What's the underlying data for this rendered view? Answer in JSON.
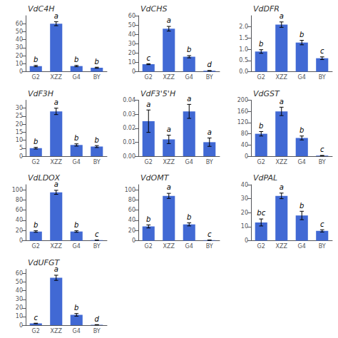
{
  "chart_data": [
    {
      "type": "bar",
      "title": "VdC4H",
      "categories": [
        "G2",
        "XZZ",
        "G4",
        "BY"
      ],
      "values": [
        7,
        60,
        7,
        5
      ],
      "errors": [
        0.8,
        2.5,
        0.8,
        0.6
      ],
      "annotations": [
        "b",
        "a",
        "b",
        "b"
      ],
      "color": "#4169d4",
      "ylim": [
        0,
        70
      ],
      "yticks": [
        0,
        10,
        20,
        30,
        40,
        50,
        60
      ],
      "grid": false
    },
    {
      "type": "bar",
      "title": "VdCHS",
      "categories": [
        "G2",
        "XZZ",
        "G4",
        "BY"
      ],
      "values": [
        8,
        46,
        16,
        1
      ],
      "errors": [
        0.5,
        2.5,
        1.2,
        0.2
      ],
      "annotations": [
        "c",
        "a",
        "b",
        "d"
      ],
      "color": "#4169d4",
      "ylim": [
        0,
        60
      ],
      "yticks": [
        0,
        10,
        20,
        30,
        40,
        50,
        60
      ],
      "grid": false
    },
    {
      "type": "bar",
      "title": "VdDFR",
      "categories": [
        "G2",
        "XZZ",
        "G4",
        "BY"
      ],
      "values": [
        0.9,
        2.1,
        1.3,
        0.6
      ],
      "errors": [
        0.08,
        0.12,
        0.1,
        0.06
      ],
      "annotations": [
        "b",
        "a",
        "b",
        "c"
      ],
      "color": "#4169d4",
      "ylim": [
        0,
        2.5
      ],
      "yticks": [
        {
          "value": 0,
          "label": "0.0"
        },
        0.5,
        {
          "value": 1.0,
          "label": "1.0"
        },
        1.5,
        {
          "value": 2.0,
          "label": "2.0"
        }
      ],
      "grid": false
    },
    {
      "type": "bar",
      "title": "VdF3H",
      "categories": [
        "G2",
        "XZZ",
        "G4",
        "BY"
      ],
      "values": [
        5,
        28,
        7,
        6
      ],
      "errors": [
        0.5,
        2.0,
        0.7,
        0.6
      ],
      "annotations": [
        "b",
        "a",
        "b",
        "b"
      ],
      "color": "#4169d4",
      "ylim": [
        0,
        35
      ],
      "yticks": [
        0,
        5,
        10,
        15,
        20,
        25,
        30
      ],
      "grid": false
    },
    {
      "type": "bar",
      "title": "VdF3'5'H",
      "categories": [
        "G2",
        "XZZ",
        "G4",
        "BY"
      ],
      "values": [
        0.025,
        0.012,
        0.032,
        0.01
      ],
      "errors": [
        0.008,
        0.003,
        0.005,
        0.003
      ],
      "annotations": [
        "a",
        "a",
        "a",
        "a"
      ],
      "color": "#4169d4",
      "ylim": [
        0,
        0.04
      ],
      "yticks": [
        {
          "value": 0,
          "label": "0.00"
        },
        0.01,
        0.02,
        0.03,
        0.04
      ],
      "grid": false
    },
    {
      "type": "bar",
      "title": "VdGST",
      "categories": [
        "G2",
        "XZZ",
        "G4",
        "BY"
      ],
      "values": [
        80,
        160,
        65,
        2
      ],
      "errors": [
        8,
        15,
        7,
        0.5
      ],
      "annotations": [
        "b",
        "a",
        "b",
        "c"
      ],
      "color": "#4169d4",
      "ylim": [
        0,
        200
      ],
      "yticks": [
        0,
        40,
        80,
        120,
        160,
        200
      ],
      "grid": false
    },
    {
      "type": "bar",
      "title": "VdLDOX",
      "categories": [
        "G2",
        "XZZ",
        "G4",
        "BY"
      ],
      "values": [
        18,
        95,
        18,
        1
      ],
      "errors": [
        1.5,
        4,
        1.5,
        0.2
      ],
      "annotations": [
        "b",
        "a",
        "b",
        "c"
      ],
      "color": "#4169d4",
      "ylim": [
        0,
        110
      ],
      "yticks": [
        0,
        20,
        40,
        60,
        80,
        100
      ],
      "grid": false
    },
    {
      "type": "bar",
      "title": "VdOMT",
      "categories": [
        "G2",
        "XZZ",
        "G4",
        "BY"
      ],
      "values": [
        28,
        88,
        32,
        1
      ],
      "errors": [
        3,
        5,
        3,
        0.2
      ],
      "annotations": [
        "b",
        "a",
        "b",
        "c"
      ],
      "color": "#4169d4",
      "ylim": [
        0,
        110
      ],
      "yticks": [
        0,
        20,
        40,
        60,
        80,
        100
      ],
      "grid": false
    },
    {
      "type": "bar",
      "title": "VdPAL",
      "categories": [
        "G2",
        "XZZ",
        "G4",
        "BY"
      ],
      "values": [
        13,
        32,
        18,
        7
      ],
      "errors": [
        2.5,
        2,
        3,
        0.8
      ],
      "annotations": [
        "bc",
        "a",
        "b",
        "c"
      ],
      "color": "#4169d4",
      "ylim": [
        0,
        40
      ],
      "yticks": [
        0,
        10,
        20,
        30,
        40
      ],
      "grid": false
    },
    {
      "type": "bar",
      "title": "VdUFGT",
      "categories": [
        "G2",
        "XZZ",
        "G4",
        "BY"
      ],
      "values": [
        2,
        55,
        12,
        0.5
      ],
      "errors": [
        0.3,
        3,
        1.5,
        0.1
      ],
      "annotations": [
        "c",
        "a",
        "b",
        "d"
      ],
      "color": "#4169d4",
      "ylim": [
        0,
        65
      ],
      "yticks": [
        0,
        10,
        20,
        30,
        40,
        50,
        60
      ],
      "grid": false
    }
  ]
}
